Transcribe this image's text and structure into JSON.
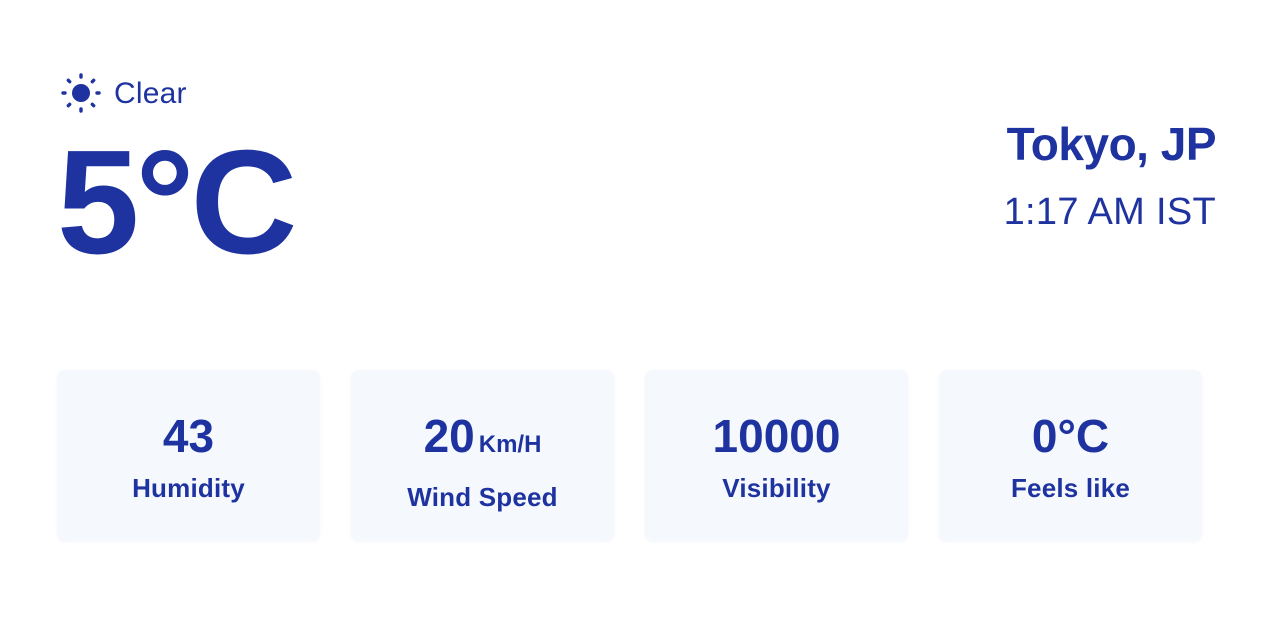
{
  "weather": {
    "condition": "Clear",
    "condition_icon": "sun-icon",
    "temperature": "5°C"
  },
  "location": {
    "city": "Tokyo, JP",
    "time": "1:17 AM IST"
  },
  "stats": [
    {
      "value": "43",
      "unit": "",
      "label": "Humidity"
    },
    {
      "value": "20",
      "unit": "Km/H",
      "label": "Wind Speed"
    },
    {
      "value": "10000",
      "unit": "",
      "label": "Visibility"
    },
    {
      "value": "0°C",
      "unit": "",
      "label": "Feels like"
    }
  ],
  "colors": {
    "text": "#1e33a0",
    "card_background": "#f5f9fd",
    "page_background": "#ffffff"
  }
}
